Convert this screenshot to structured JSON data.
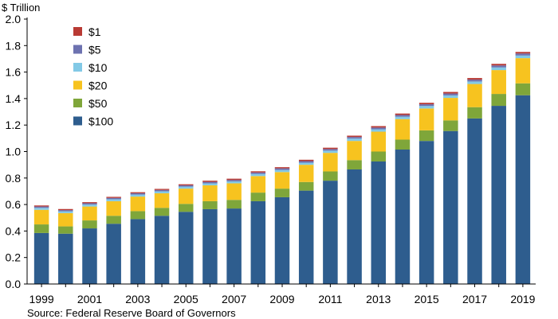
{
  "chart_data": {
    "type": "bar",
    "stacked": true,
    "unit_label": "$ Trillion",
    "source": "Source: Federal Reserve Board of Governors",
    "ylim": [
      0,
      2.0
    ],
    "y_ticks": [
      "0.0",
      "0.2",
      "0.4",
      "0.6",
      "0.8",
      "1.0",
      "1.2",
      "1.4",
      "1.6",
      "1.8",
      "2.0"
    ],
    "x_tick_labels": [
      "1999",
      "2001",
      "2003",
      "2005",
      "2007",
      "2009",
      "2011",
      "2013",
      "2015",
      "2017",
      "2019"
    ],
    "grid": false,
    "legend_placement": "top-left",
    "categories": [
      "1999",
      "2000",
      "2001",
      "2002",
      "2003",
      "2004",
      "2005",
      "2006",
      "2007",
      "2008",
      "2009",
      "2010",
      "2011",
      "2012",
      "2013",
      "2014",
      "2015",
      "2016",
      "2017",
      "2018",
      "2019"
    ],
    "series": [
      {
        "name": "$100",
        "color": "#2e5d8e",
        "values": [
          0.385,
          0.38,
          0.42,
          0.455,
          0.49,
          0.515,
          0.545,
          0.565,
          0.57,
          0.625,
          0.655,
          0.705,
          0.78,
          0.865,
          0.925,
          1.015,
          1.08,
          1.155,
          1.25,
          1.345,
          1.425
        ]
      },
      {
        "name": "$50",
        "color": "#7fa63a",
        "values": [
          0.065,
          0.055,
          0.06,
          0.06,
          0.06,
          0.06,
          0.06,
          0.06,
          0.065,
          0.065,
          0.065,
          0.065,
          0.07,
          0.07,
          0.075,
          0.075,
          0.08,
          0.08,
          0.085,
          0.09,
          0.09
        ]
      },
      {
        "name": "$20",
        "color": "#f7c31f",
        "values": [
          0.11,
          0.1,
          0.105,
          0.11,
          0.11,
          0.11,
          0.115,
          0.12,
          0.125,
          0.125,
          0.125,
          0.13,
          0.14,
          0.145,
          0.15,
          0.155,
          0.165,
          0.17,
          0.175,
          0.18,
          0.19
        ]
      },
      {
        "name": "$10",
        "color": "#82c9e6",
        "values": [
          0.015,
          0.014,
          0.015,
          0.015,
          0.015,
          0.015,
          0.015,
          0.015,
          0.015,
          0.016,
          0.016,
          0.016,
          0.017,
          0.018,
          0.018,
          0.018,
          0.019,
          0.019,
          0.019,
          0.02,
          0.02
        ]
      },
      {
        "name": "$5",
        "color": "#6d72b0",
        "values": [
          0.01,
          0.009,
          0.01,
          0.01,
          0.01,
          0.01,
          0.01,
          0.011,
          0.011,
          0.011,
          0.012,
          0.012,
          0.012,
          0.012,
          0.013,
          0.013,
          0.013,
          0.014,
          0.014,
          0.015,
          0.015
        ]
      },
      {
        "name": "$1",
        "color": "#b93a34",
        "values": [
          0.008,
          0.008,
          0.008,
          0.008,
          0.008,
          0.008,
          0.008,
          0.009,
          0.009,
          0.009,
          0.009,
          0.01,
          0.01,
          0.01,
          0.011,
          0.011,
          0.011,
          0.012,
          0.012,
          0.012,
          0.012
        ]
      }
    ]
  }
}
